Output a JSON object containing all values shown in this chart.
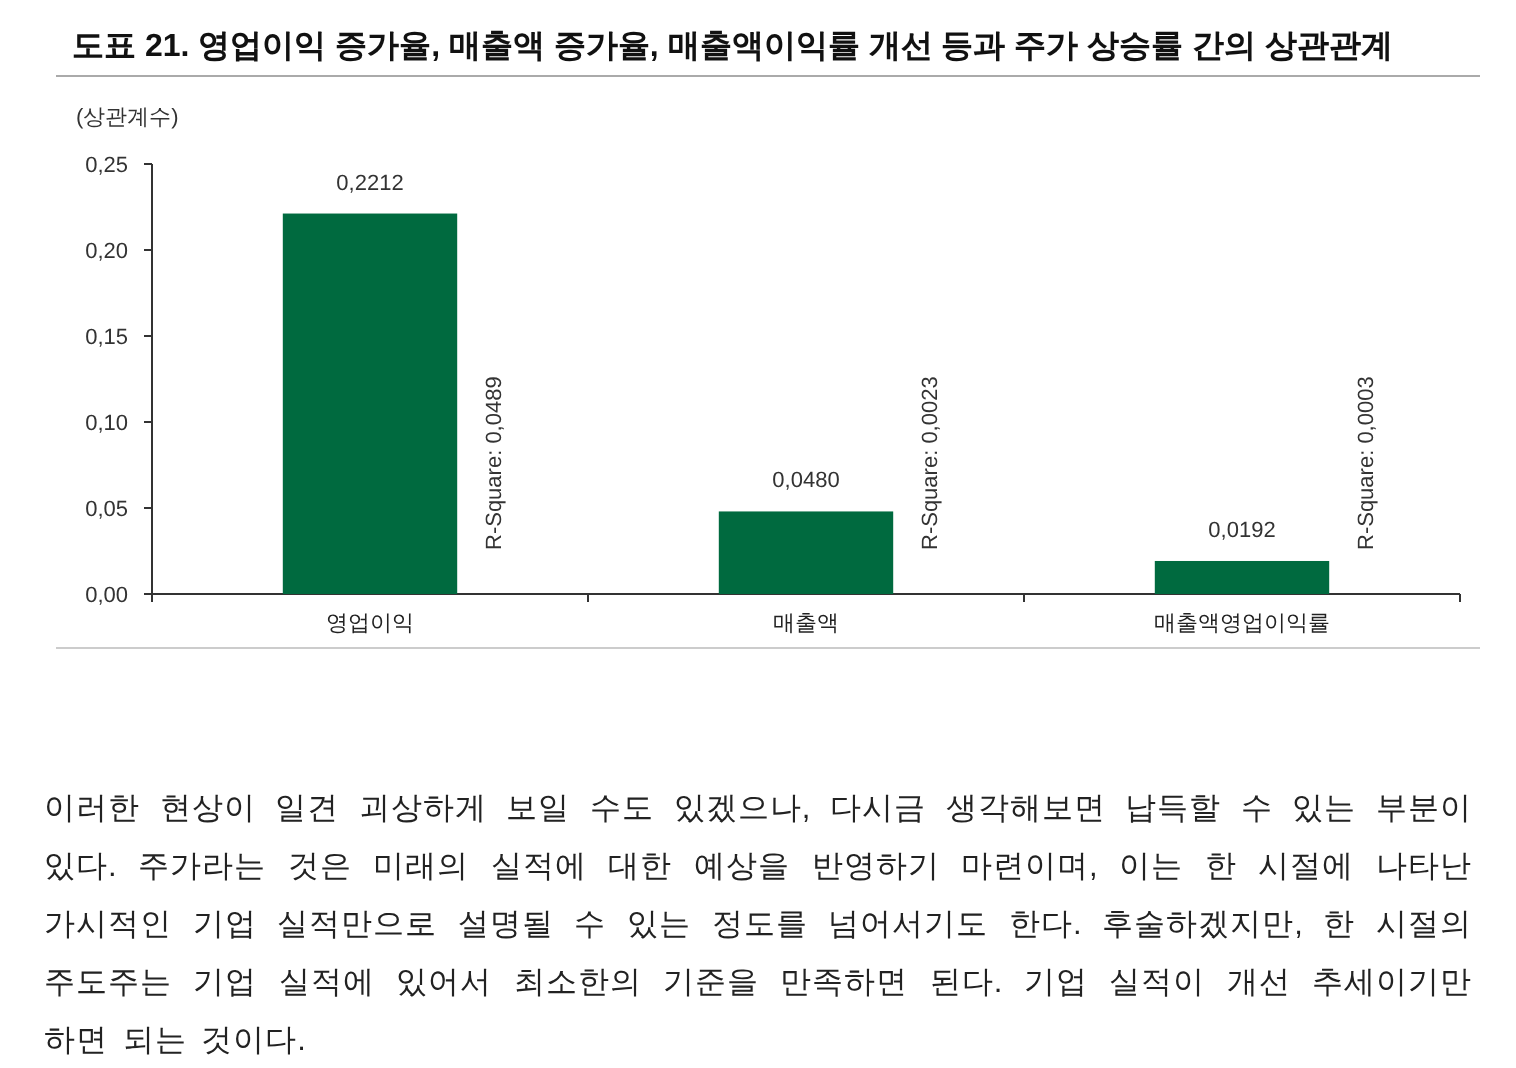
{
  "chart_data": {
    "type": "bar",
    "title": "도표 21. 영업이익 증가율, 매출액 증가율, 매출액이익률 개선 등과 주가 상승률 간의 상관관계",
    "ylabel": "(상관계수)",
    "categories": [
      "영업이익",
      "매출액",
      "매출액영업이익률"
    ],
    "values": [
      0.2212,
      0.048,
      0.0192
    ],
    "value_labels": [
      "0,2212",
      "0,0480",
      "0,0192"
    ],
    "color": "#006a3f",
    "ylim": [
      0,
      0.25
    ],
    "yticks": [
      {
        "value": 0,
        "label": "0,00"
      },
      {
        "value": 0.05,
        "label": "0,05"
      },
      {
        "value": 0.1,
        "label": "0,10"
      },
      {
        "value": 0.15,
        "label": "0,15"
      },
      {
        "value": 0.2,
        "label": "0,20"
      },
      {
        "value": 0.25,
        "label": "0,25"
      }
    ],
    "annotations": [
      "R-Square: 0,0489",
      "R-Square: 0,0023",
      "R-Square: 0,0003",
      "이러한 현상이 일견 괴상하게 보일 수도 있겠으나, 다시금 생각해보면 납득할 수 있는 부분이 있다. 주가라는 것은 미래의 실적에 대한 예상을 반영하기 마련이며, 이는 한 시절에 나타난 가시적인 기업 실적만으로 설명될 수 있는 정도를 넘어서기도 한다. 후술하겠지만, 한 시절의 주도주는 기업 실적에 있어서 최소한의 기준을 만족하면 된다. 기업 실적이 개선 추세이기만 하면 되는 것이다."
    ]
  }
}
